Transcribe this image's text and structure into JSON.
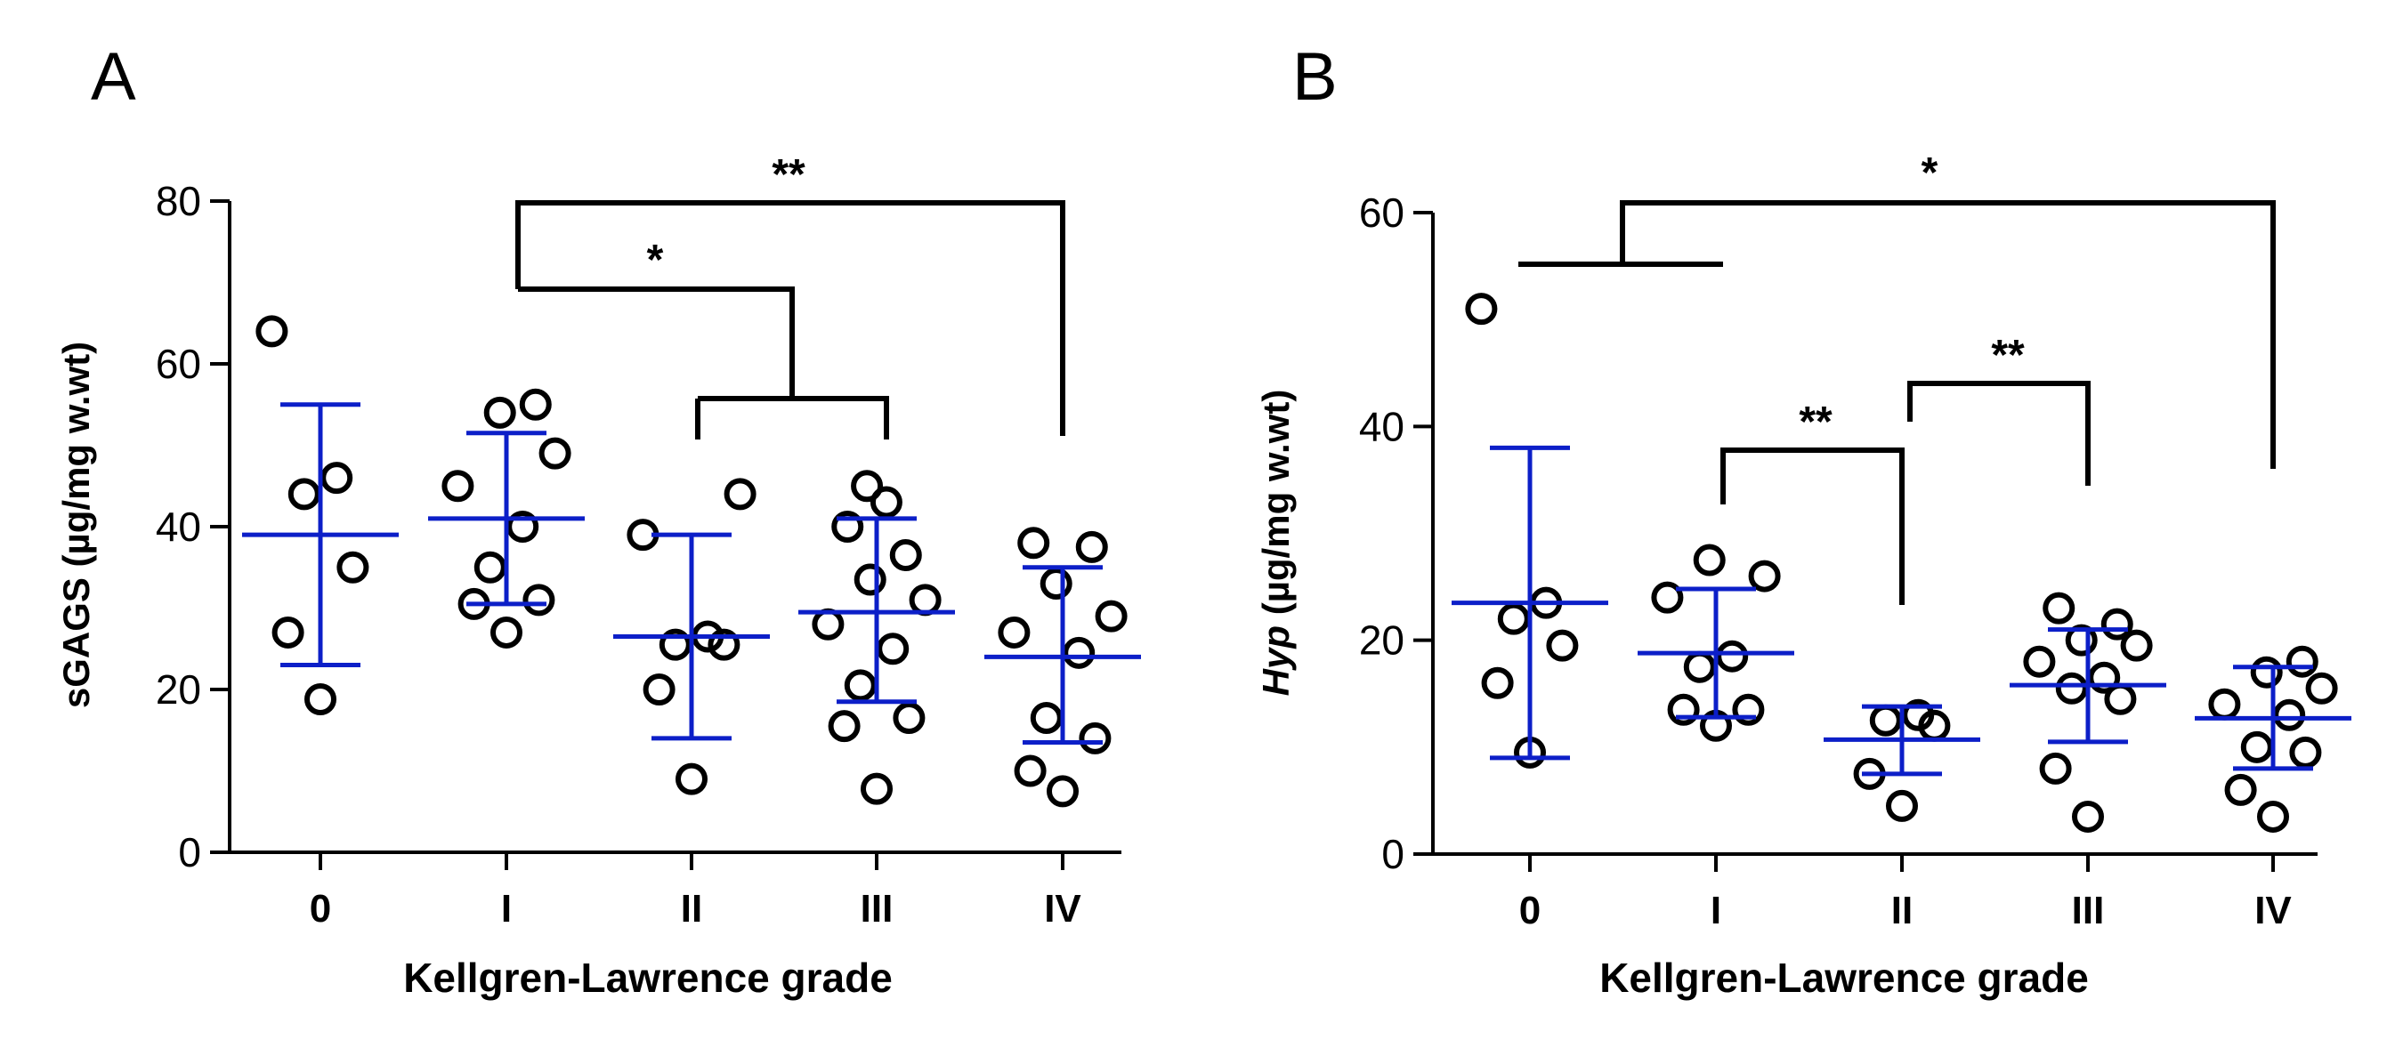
{
  "chart_data": [
    {
      "panel": "A",
      "type": "scatter",
      "title": "",
      "ylabel_parts": [
        {
          "text": "sGAGS",
          "italic": false
        },
        {
          "text": " (µg/mg w.wt)",
          "italic": false
        }
      ],
      "xlabel": "Kellgren-Lawrence grade",
      "categories": [
        "0",
        "I",
        "II",
        "III",
        "IV"
      ],
      "ylim": [
        0,
        80
      ],
      "yticks": [
        0,
        20,
        40,
        60,
        80
      ],
      "points": [
        [
          18.8,
          27,
          35,
          44,
          46,
          64
        ],
        [
          27,
          30.5,
          31,
          35,
          40,
          45,
          49,
          54,
          55
        ],
        [
          9,
          20,
          25.5,
          25.5,
          26.5,
          39,
          44
        ],
        [
          7.8,
          15.5,
          16.5,
          20.5,
          25,
          28,
          31,
          33.5,
          36.5,
          40,
          43,
          45
        ],
        [
          7.5,
          10,
          14,
          16.5,
          24.5,
          27,
          29,
          33,
          37.5,
          38
        ]
      ],
      "mean": [
        39,
        41,
        26.5,
        29.5,
        24
      ],
      "sd_low": [
        23,
        30.5,
        14,
        18.5,
        13.5
      ],
      "sd_high": [
        55,
        51.5,
        39,
        41,
        35
      ],
      "brackets": [
        {
          "label": "**",
          "left": [
            "I"
          ],
          "right": [
            "IV"
          ],
          "y": 80
        },
        {
          "label": "*",
          "left": [
            "I"
          ],
          "right": [
            "II",
            "III"
          ],
          "y": 69.5,
          "right_y": 55.5
        }
      ]
    },
    {
      "panel": "B",
      "type": "scatter",
      "title": "",
      "ylabel_parts": [
        {
          "text": "Hyp",
          "italic": true
        },
        {
          "text": " (µg/mg w.wt)",
          "italic": false
        }
      ],
      "xlabel": "Kellgren-Lawrence grade",
      "categories": [
        "0",
        "I",
        "II",
        "III",
        "IV"
      ],
      "ylim": [
        0,
        60
      ],
      "yticks": [
        0,
        20,
        40,
        60
      ],
      "points": [
        [
          9.5,
          16,
          19.5,
          22,
          23.5,
          51
        ],
        [
          12,
          13.5,
          13.5,
          17.5,
          18.5,
          24,
          26,
          27.5
        ],
        [
          4.5,
          7.5,
          12,
          12.5,
          13
        ],
        [
          3.5,
          8,
          14.5,
          15.5,
          16.5,
          18,
          19.5,
          20,
          21.5,
          23
        ],
        [
          3.5,
          6,
          9.5,
          10,
          13,
          14,
          15.5,
          17,
          18
        ]
      ],
      "mean": [
        23.5,
        18.8,
        10.7,
        15.8,
        12.7
      ],
      "sd_low": [
        9,
        12.8,
        7.5,
        10.5,
        8
      ],
      "sd_high": [
        38,
        24.8,
        13.8,
        21,
        17.5
      ],
      "brackets": [
        {
          "label": "*",
          "left": [
            "0",
            "I"
          ],
          "right": [
            "IV"
          ],
          "y": 60,
          "left_y": 55.5
        },
        {
          "label": "**",
          "left": [
            "I"
          ],
          "right": [
            "II"
          ],
          "y": 38
        },
        {
          "label": "**",
          "left": [
            "II"
          ],
          "right": [
            "III"
          ],
          "y": 43.5
        }
      ]
    }
  ]
}
